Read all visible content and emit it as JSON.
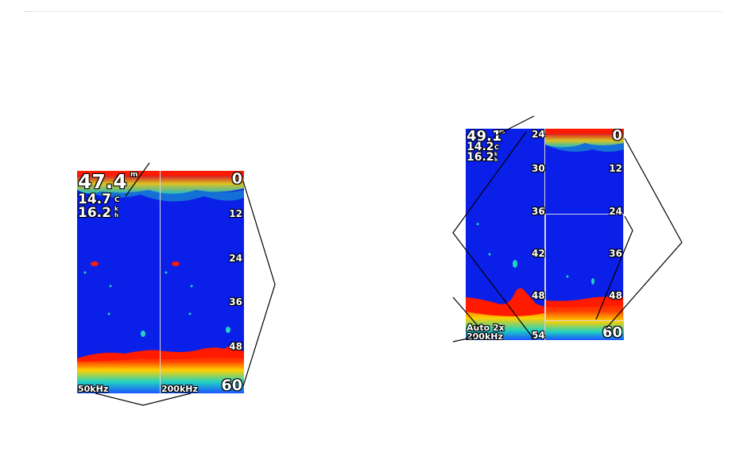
{
  "left_screen": {
    "depth": "47.4",
    "depth_unit": "m",
    "temperature": "14.7",
    "temperature_unit": "C",
    "speed": "16.2",
    "speed_unit_top": "k",
    "speed_unit_bottom": "h",
    "scale_top": "0",
    "scale_ticks": [
      "12",
      "24",
      "36",
      "48"
    ],
    "scale_bottom": "60",
    "frequency_left": "50kHz",
    "frequency_right": "200kHz"
  },
  "right_screen": {
    "depth": "49.1",
    "depth_unit": "m",
    "temperature": "14.2",
    "temperature_unit": "C",
    "speed": "16.2",
    "speed_unit_top": "k",
    "speed_unit_bottom": "h",
    "zoom_scale_ticks": [
      "24",
      "30",
      "36",
      "42",
      "48",
      "54"
    ],
    "full_scale_top": "0",
    "full_scale_ticks": [
      "12",
      "24",
      "36",
      "48"
    ],
    "full_scale_bottom": "60",
    "zoom_mode": "Auto 2x",
    "frequency": "200kHz"
  },
  "colors": {
    "water": "#0a1fe8",
    "strong_return": "#ff1a00",
    "medium_return": "#ffe000",
    "weak_return": "#22d3c0",
    "callout_line": "#000000"
  }
}
